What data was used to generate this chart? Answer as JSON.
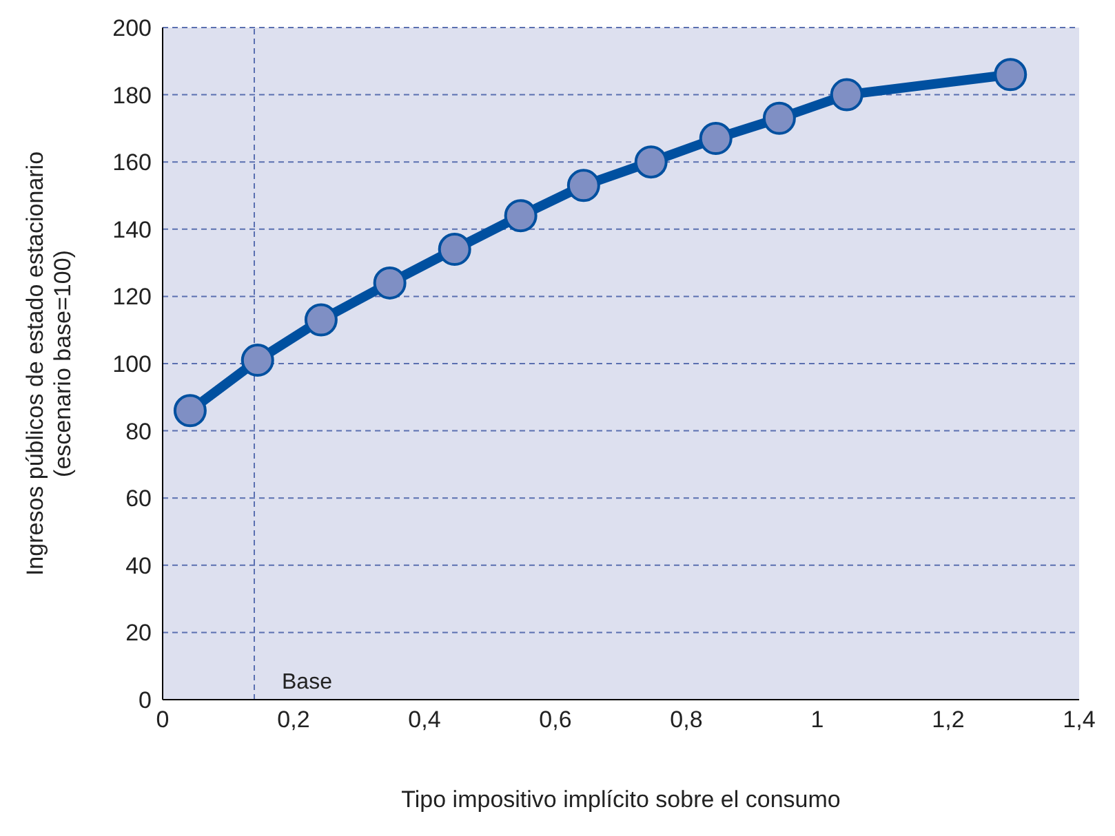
{
  "chart_data": {
    "type": "line",
    "xlabel": "Tipo impositivo implícito sobre el consumo",
    "ylabel": "Ingresos públicos de estado estacionario\n(escenario base=100)",
    "x": [
      0.042,
      0.145,
      0.242,
      0.347,
      0.446,
      0.547,
      0.643,
      0.746,
      0.845,
      0.942,
      1.045,
      1.295
    ],
    "series": [
      {
        "color": "#0050a0",
        "values": [
          86,
          101,
          113,
          124,
          134,
          144,
          153,
          160,
          167,
          173,
          180,
          186
        ]
      }
    ],
    "xlim": [
      0,
      1.4
    ],
    "xticks": [
      0,
      {
        "value": 0.2,
        "label": "0,2"
      },
      {
        "value": 0.4,
        "label": "0,4"
      },
      {
        "value": 0.6,
        "label": "0,6"
      },
      {
        "value": 0.8,
        "label": "0,8"
      },
      1,
      {
        "value": 1.2,
        "label": "1,2"
      },
      {
        "value": 1.4,
        "label": "1,4"
      }
    ],
    "ylim": [
      0,
      200
    ],
    "yticks": [
      0,
      20,
      40,
      60,
      80,
      100,
      120,
      140,
      160,
      180,
      200
    ],
    "grid": "y",
    "marker": "circle",
    "line_style": "solid",
    "ref_lines": [
      {
        "axis": "x",
        "value": 0.14,
        "label": "Base",
        "color": "#5a6fb0",
        "line_style": "dashed"
      }
    ]
  }
}
